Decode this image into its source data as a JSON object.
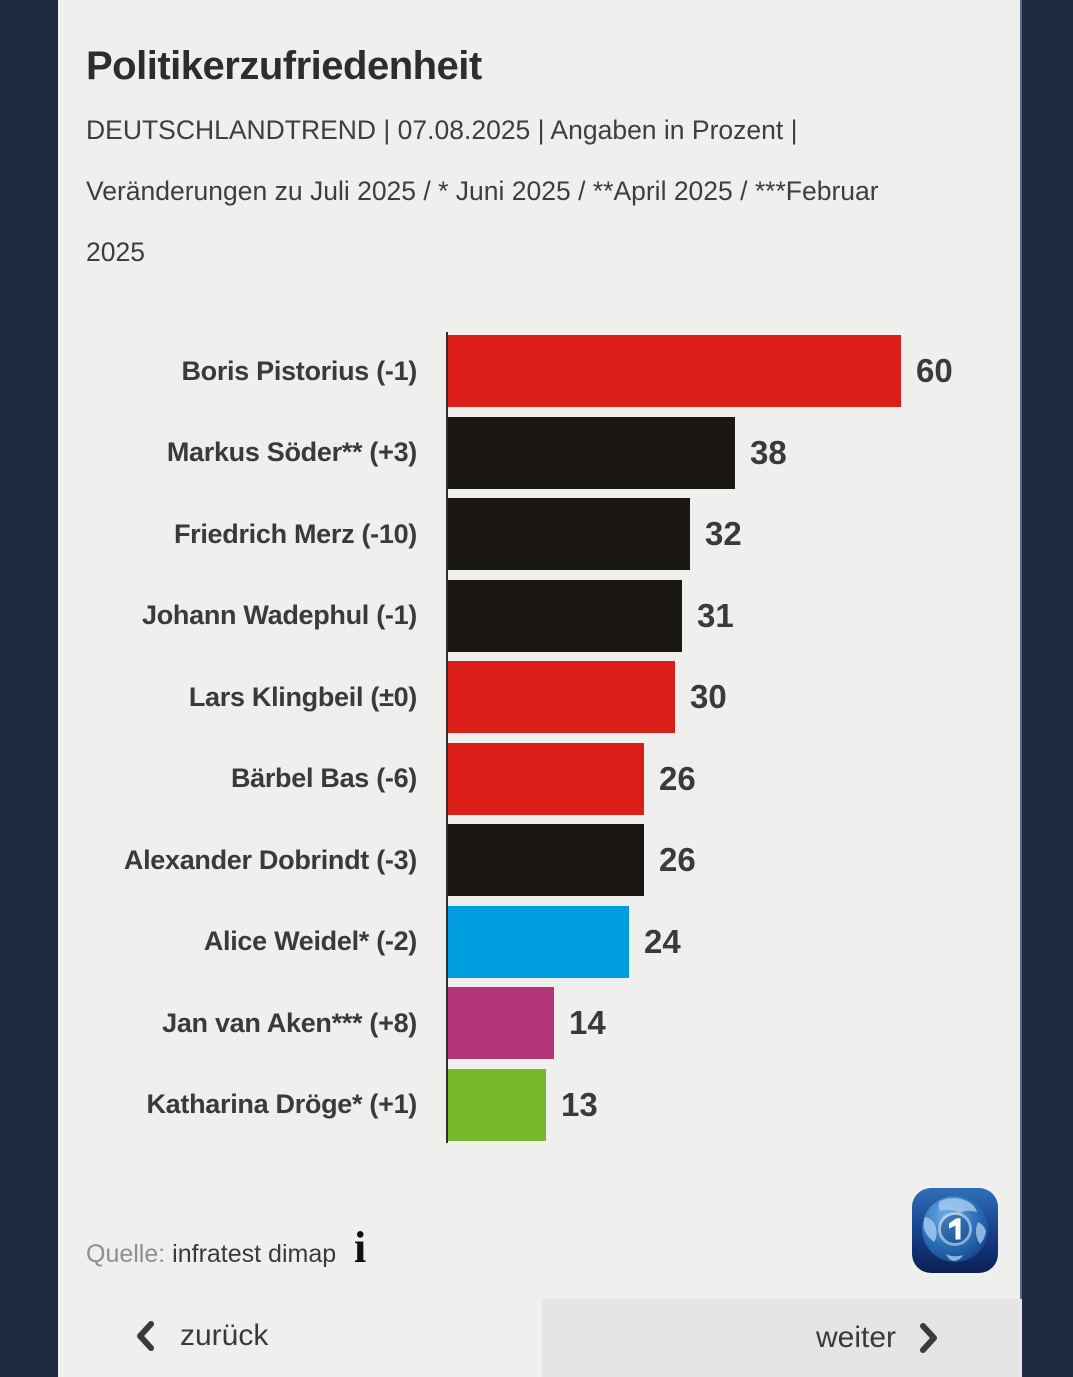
{
  "header": {
    "title": "Politikerzufriedenheit",
    "subtitle_lines": [
      "DEUTSCHLANDTREND | 07.08.2025 | Angaben in Prozent |",
      "Veränderungen zu Juli 2025 / * Juni 2025 / **April 2025 / ***Februar",
      "2025"
    ]
  },
  "chart_data": {
    "type": "bar",
    "orientation": "horizontal",
    "title": "Politikerzufriedenheit",
    "unit": "percent",
    "xlim": [
      0,
      60
    ],
    "grid": false,
    "rows": [
      {
        "label": "Boris Pistorius (-1)",
        "name": "Boris Pistorius",
        "change": "-1",
        "value": 60,
        "color": "#dc1e19"
      },
      {
        "label": "Markus Söder** (+3)",
        "name": "Markus Söder",
        "change": "+3",
        "value": 38,
        "color": "#1a1715"
      },
      {
        "label": "Friedrich Merz (-10)",
        "name": "Friedrich Merz",
        "change": "-10",
        "value": 32,
        "color": "#1a1715"
      },
      {
        "label": "Johann Wadephul (-1)",
        "name": "Johann Wadephul",
        "change": "-1",
        "value": 31,
        "color": "#1a1715"
      },
      {
        "label": "Lars Klingbeil (±0)",
        "name": "Lars Klingbeil",
        "change": "±0",
        "value": 30,
        "color": "#dc1e19"
      },
      {
        "label": "Bärbel Bas (-6)",
        "name": "Bärbel Bas",
        "change": "-6",
        "value": 26,
        "color": "#dc1e19"
      },
      {
        "label": "Alexander Dobrindt (-3)",
        "name": "Alexander Dobrindt",
        "change": "-3",
        "value": 26,
        "color": "#1a1715"
      },
      {
        "label": "Alice Weidel* (-2)",
        "name": "Alice Weidel",
        "change": "-2",
        "value": 24,
        "color": "#009ee0"
      },
      {
        "label": "Jan van Aken*** (+8)",
        "name": "Jan van Aken",
        "change": "+8",
        "value": 14,
        "color": "#b43579"
      },
      {
        "label": "Katharina Dröge* (+1)",
        "name": "Katharina Dröge",
        "change": "+1",
        "value": 13,
        "color": "#76b82a"
      }
    ]
  },
  "colors": {
    "page_border": "#1e2942",
    "content_bg": "#efefee",
    "next_block_bg": "#e5e5e4",
    "axis": "#2f2f2f",
    "bar_red": "#dc1e19",
    "bar_black": "#1a1715",
    "bar_blue": "#009ee0",
    "bar_magenta": "#b43579",
    "bar_green": "#76b82a",
    "text": "#3a3a3a"
  },
  "footer": {
    "source_label": "Quelle:",
    "source": "infratest dimap",
    "info_icon": "i",
    "logo_digit": "1"
  },
  "nav": {
    "back_label": "zurück",
    "next_label": "weiter"
  }
}
